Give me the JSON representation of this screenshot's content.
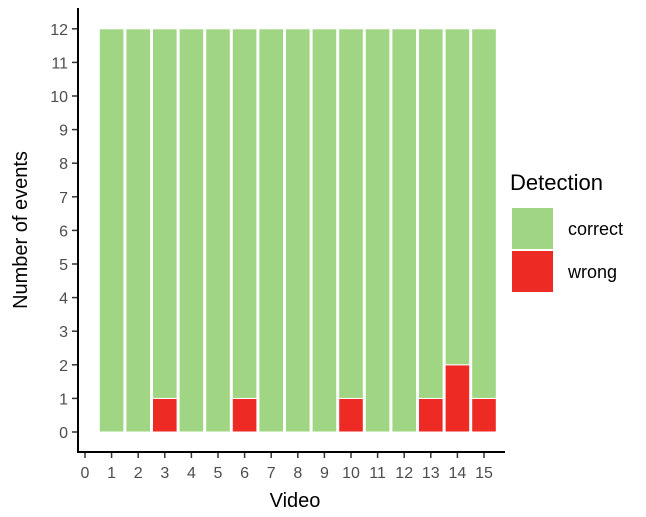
{
  "chart_data": {
    "type": "bar",
    "stacked": true,
    "xlabel": "Video",
    "ylabel": "Number of events",
    "x": [
      1,
      2,
      3,
      4,
      5,
      6,
      7,
      8,
      9,
      10,
      11,
      12,
      13,
      14,
      15
    ],
    "x_ticks": [
      0,
      1,
      2,
      3,
      4,
      5,
      6,
      7,
      8,
      9,
      10,
      11,
      12,
      13,
      14,
      15
    ],
    "y_ticks": [
      0,
      1,
      2,
      3,
      4,
      5,
      6,
      7,
      8,
      9,
      10,
      11,
      12
    ],
    "xlim": [
      0,
      15.5
    ],
    "ylim": [
      0,
      12
    ],
    "grid": false,
    "series": [
      {
        "name": "wrong",
        "color": "#ee2a24",
        "values": [
          0,
          0,
          1,
          0,
          0,
          1,
          0,
          0,
          0,
          1,
          0,
          0,
          1,
          2,
          1
        ]
      },
      {
        "name": "correct",
        "color": "#9fd583",
        "values": [
          12,
          12,
          11,
          12,
          12,
          11,
          12,
          12,
          12,
          11,
          12,
          12,
          11,
          10,
          11
        ]
      }
    ],
    "legend": {
      "title": "Detection",
      "position": "right",
      "entries": [
        {
          "label": "correct",
          "color": "#9fd583"
        },
        {
          "label": "wrong",
          "color": "#ee2a24"
        }
      ]
    }
  }
}
